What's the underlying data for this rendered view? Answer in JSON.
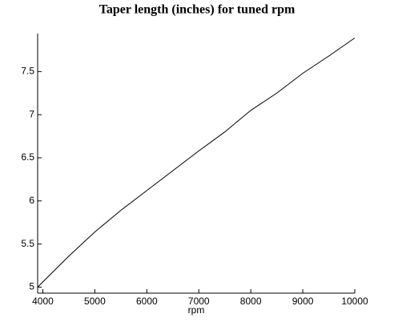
{
  "chart_data": {
    "type": "line",
    "title": "Taper length (inches) for tuned rpm",
    "x_label": "rpm",
    "x": [
      3900,
      4000,
      4500,
      5000,
      5500,
      6000,
      6500,
      7000,
      7500,
      8000,
      8500,
      9000,
      9500,
      10000
    ],
    "series": [
      {
        "color": "#000000",
        "values": [
          5.0,
          5.06,
          5.36,
          5.64,
          5.89,
          6.12,
          6.35,
          6.58,
          6.8,
          7.05,
          7.25,
          7.48,
          7.68,
          7.89
        ]
      }
    ],
    "xlim": [
      3900,
      10000
    ],
    "xticks": [
      4000,
      5000,
      6000,
      7000,
      8000,
      9000,
      10000
    ],
    "ylim": [
      4.93,
      7.94
    ],
    "yticks": [
      5,
      5.5,
      6,
      6.5,
      7,
      7.5
    ]
  }
}
